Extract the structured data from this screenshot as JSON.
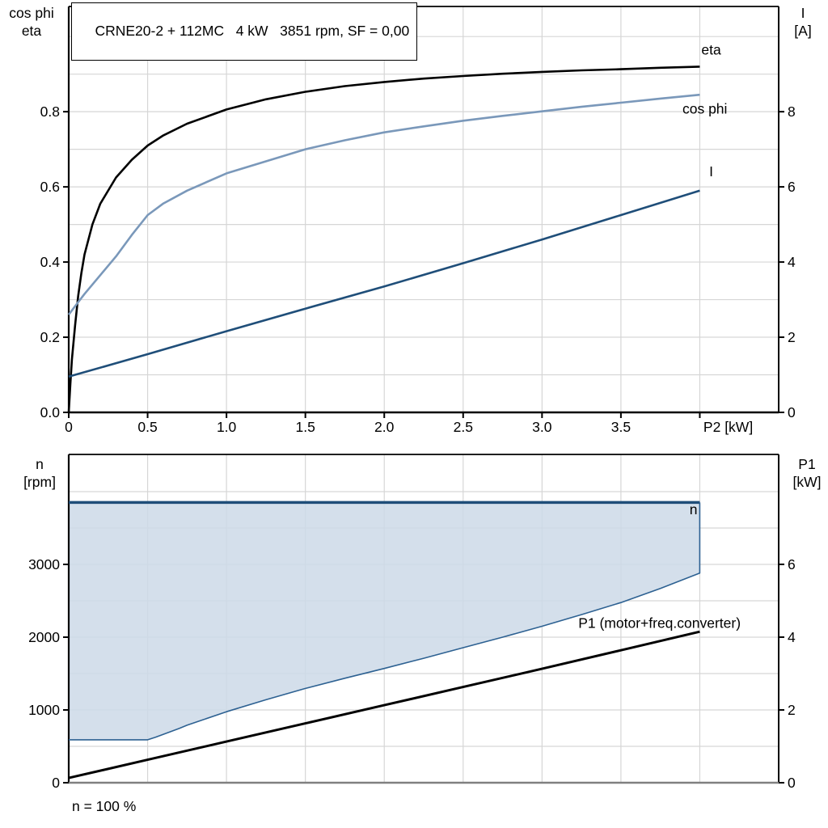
{
  "colors": {
    "background": "#ffffff",
    "grid": "#d6d6d6",
    "frame": "#000000",
    "eta_curve": "#000000",
    "cos_phi_curve": "#7a98ba",
    "current_curve": "#1f4e79",
    "speed_line": "#1f4e79",
    "speed_range_fill": "#cdd9e7",
    "p1_curve": "#000000",
    "bottom_axis_line": "#808080"
  },
  "labels": {
    "top_left": [
      "cos phi",
      "eta"
    ],
    "top_right": [
      "I",
      "[A]"
    ],
    "bottom_left": [
      "n",
      "[rpm]"
    ],
    "bottom_right": [
      "P1",
      "[kW]"
    ]
  },
  "chart_data": [
    {
      "type": "line",
      "title": "CRNE20-2 + 112MC   4 kW   3851 rpm, SF = 0,00",
      "x_axis": {
        "label": "P2 [kW]",
        "label_at_x": 4.18,
        "min": 0,
        "max": 4.5,
        "grid_step": 0.5,
        "grid_max": 4.0,
        "ticks": [
          0,
          0.5,
          1.0,
          1.5,
          2.0,
          2.5,
          3.0,
          3.5,
          4.0
        ],
        "tick_labels": [
          "0",
          "0.5",
          "1.0",
          "1.5",
          "2.0",
          "2.5",
          "3.0",
          "3.5",
          ""
        ]
      },
      "y_left": {
        "title": "cos phi / eta",
        "min": 0,
        "max": 1.08,
        "grid_step": 0.1,
        "grid_max": 1.0,
        "ticks": [
          0,
          0.2,
          0.4,
          0.6,
          0.8
        ],
        "tick_labels": [
          "0.0",
          "0.2",
          "0.4",
          "0.6",
          "0.8"
        ]
      },
      "y_right": {
        "title": "I [A]",
        "min": 0,
        "max": 10.8,
        "ticks": [
          0,
          2,
          4,
          6,
          8
        ],
        "tick_labels": [
          "0",
          "2",
          "4",
          "6",
          "8"
        ]
      },
      "series": [
        {
          "name": "eta",
          "axis": "left",
          "color": "#000000",
          "width": 2.6,
          "label": {
            "text": "eta",
            "at": [
              4.01,
              0.952
            ],
            "anchor": "start",
            "color": "#000000"
          },
          "points": [
            [
              0,
              0
            ],
            [
              0.01,
              0.075
            ],
            [
              0.02,
              0.14
            ],
            [
              0.04,
              0.23
            ],
            [
              0.06,
              0.31
            ],
            [
              0.08,
              0.37
            ],
            [
              0.1,
              0.42
            ],
            [
              0.15,
              0.5
            ],
            [
              0.2,
              0.555
            ],
            [
              0.3,
              0.625
            ],
            [
              0.4,
              0.672
            ],
            [
              0.5,
              0.71
            ],
            [
              0.6,
              0.737
            ],
            [
              0.75,
              0.768
            ],
            [
              1,
              0.806
            ],
            [
              1.25,
              0.833
            ],
            [
              1.5,
              0.853
            ],
            [
              1.75,
              0.868
            ],
            [
              2,
              0.879
            ],
            [
              2.25,
              0.888
            ],
            [
              2.5,
              0.895
            ],
            [
              2.75,
              0.901
            ],
            [
              3,
              0.906
            ],
            [
              3.25,
              0.91
            ],
            [
              3.5,
              0.913
            ],
            [
              3.75,
              0.917
            ],
            [
              4,
              0.92
            ]
          ]
        },
        {
          "name": "cos phi",
          "axis": "left",
          "color": "#7a98ba",
          "width": 2.6,
          "label": {
            "text": "cos phi",
            "at": [
              3.89,
              0.795
            ],
            "anchor": "start",
            "color": "#7a98ba"
          },
          "points": [
            [
              0,
              0.26
            ],
            [
              0.05,
              0.288
            ],
            [
              0.1,
              0.315
            ],
            [
              0.2,
              0.365
            ],
            [
              0.3,
              0.415
            ],
            [
              0.4,
              0.472
            ],
            [
              0.5,
              0.525
            ],
            [
              0.6,
              0.556
            ],
            [
              0.75,
              0.59
            ],
            [
              1,
              0.636
            ],
            [
              1.25,
              0.668
            ],
            [
              1.5,
              0.7
            ],
            [
              1.75,
              0.724
            ],
            [
              2,
              0.745
            ],
            [
              2.25,
              0.761
            ],
            [
              2.5,
              0.776
            ],
            [
              2.75,
              0.789
            ],
            [
              3,
              0.801
            ],
            [
              3.25,
              0.813
            ],
            [
              3.5,
              0.824
            ],
            [
              3.75,
              0.835
            ],
            [
              4,
              0.845
            ]
          ]
        },
        {
          "name": "I",
          "axis": "right",
          "color": "#1f4e79",
          "width": 2.6,
          "label": {
            "text": "I",
            "at": [
              4.06,
              6.28
            ],
            "anchor": "start",
            "color": "#1f4e79"
          },
          "points": [
            [
              0,
              0.95
            ],
            [
              0.5,
              1.55
            ],
            [
              1,
              2.16
            ],
            [
              1.5,
              2.76
            ],
            [
              2,
              3.35
            ],
            [
              2.5,
              3.97
            ],
            [
              3,
              4.6
            ],
            [
              3.5,
              5.25
            ],
            [
              4,
              5.9
            ]
          ]
        }
      ]
    },
    {
      "type": "line",
      "footnote": "n = 100 %",
      "x_axis": {
        "min": 0,
        "max": 4.5,
        "grid_step": 0.5,
        "grid_max": 4.0,
        "line_color": "#808080"
      },
      "y_left": {
        "title": "n [rpm]",
        "min": 0,
        "max": 4511,
        "grid_step": 500,
        "grid_max": 4000,
        "ticks": [
          0,
          1000,
          2000,
          3000
        ],
        "tick_labels": [
          "0",
          "1000",
          "2000",
          "3000"
        ]
      },
      "y_right": {
        "title": "P1 [kW]",
        "min": 0,
        "max": 9.02,
        "ticks": [
          0,
          2,
          4,
          6
        ],
        "tick_labels": [
          "0",
          "2",
          "4",
          "6"
        ]
      },
      "fill_between": {
        "upper": "n",
        "lower": "n min",
        "color": "#cdd9e7",
        "opacity": 0.85
      },
      "series": [
        {
          "name": "n",
          "axis": "left",
          "color": "#1f4e79",
          "width": 3.5,
          "label": {
            "text": "n",
            "at": [
              3.96,
              3690
            ],
            "anchor": "middle",
            "color": "#1f4e79"
          },
          "points": [
            [
              0,
              3851
            ],
            [
              4,
              3851
            ]
          ]
        },
        {
          "name": "n min",
          "axis": "left",
          "color": "#2d6192",
          "width": 1.6,
          "points": [
            [
              0,
              590
            ],
            [
              0.5,
              590
            ],
            [
              0.55,
              625
            ],
            [
              0.6,
              665
            ],
            [
              0.7,
              745
            ],
            [
              0.75,
              790
            ],
            [
              1,
              975
            ],
            [
              1.25,
              1140
            ],
            [
              1.5,
              1295
            ],
            [
              1.75,
              1435
            ],
            [
              2,
              1570
            ],
            [
              2.25,
              1710
            ],
            [
              2.5,
              1855
            ],
            [
              2.75,
              2000
            ],
            [
              3,
              2150
            ],
            [
              3.25,
              2310
            ],
            [
              3.5,
              2475
            ],
            [
              3.75,
              2670
            ],
            [
              4,
              2880
            ],
            [
              4,
              3851
            ]
          ]
        },
        {
          "name": "P1 (motor+freq.converter)",
          "axis": "right",
          "color": "#000000",
          "width": 3,
          "label": {
            "text": "P1 (motor+freq.converter)",
            "at": [
              3.23,
              4.26
            ],
            "anchor": "start",
            "color": "#000000"
          },
          "points": [
            [
              0,
              0.13
            ],
            [
              0.5,
              0.63
            ],
            [
              1,
              1.13
            ],
            [
              1.5,
              1.63
            ],
            [
              2,
              2.13
            ],
            [
              2.5,
              2.63
            ],
            [
              3,
              3.13
            ],
            [
              3.5,
              3.64
            ],
            [
              4,
              4.15
            ]
          ]
        }
      ]
    }
  ]
}
